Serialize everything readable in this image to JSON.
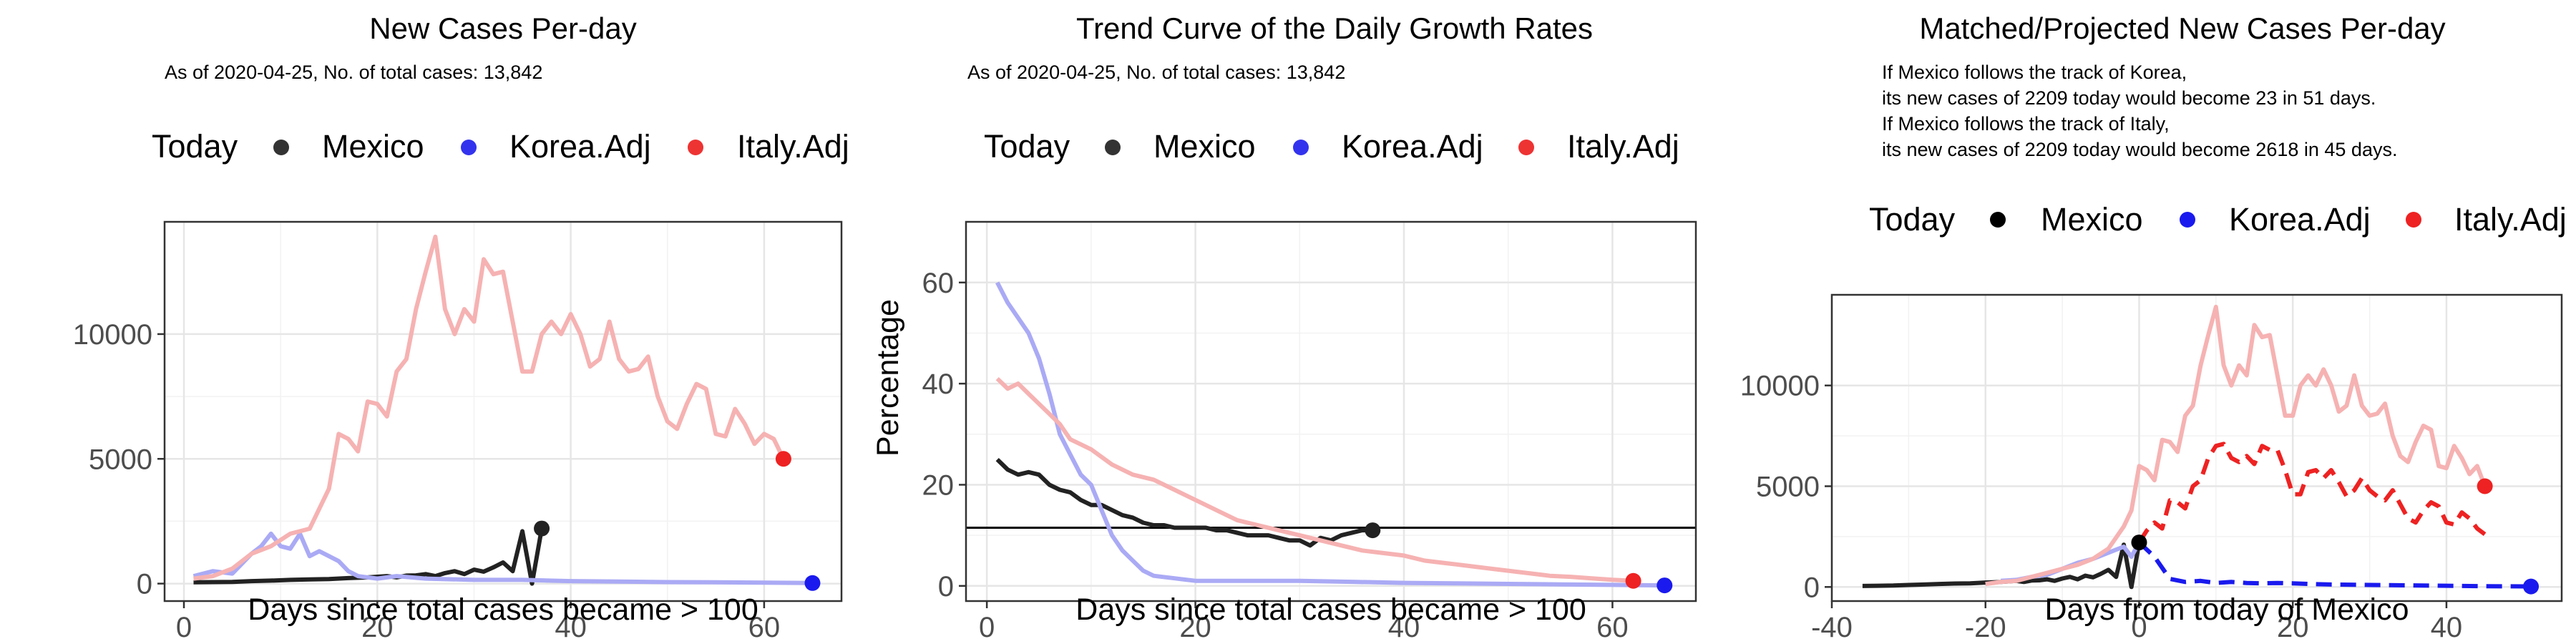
{
  "chart_data": [
    {
      "type": "line",
      "title": "New Cases Per-day",
      "subtitle": "As of 2020-04-25, No. of total cases: 13,842",
      "xlabel": "Days since total cases became > 100",
      "ylabel": "",
      "xlim": [
        -2,
        68
      ],
      "ylim": [
        -700,
        14500
      ],
      "xticks": [
        0,
        20,
        40,
        60
      ],
      "yticks": [
        0,
        5000,
        10000
      ],
      "legend": {
        "title": "Today",
        "placement": "top",
        "entries": [
          "Mexico",
          "Korea.Adj",
          "Italy.Adj"
        ]
      },
      "grid": true,
      "series": [
        {
          "name": "Mexico",
          "color": "#222222",
          "x": [
            1,
            3,
            5,
            7,
            9,
            11,
            13,
            15,
            17,
            19,
            21,
            22,
            23,
            24,
            25,
            26,
            27,
            28,
            29,
            30,
            31,
            32,
            33,
            34,
            35,
            36,
            37
          ],
          "y": [
            50,
            60,
            70,
            100,
            120,
            150,
            170,
            180,
            220,
            250,
            300,
            250,
            320,
            330,
            380,
            300,
            420,
            500,
            380,
            560,
            480,
            650,
            850,
            500,
            2100,
            0,
            2209
          ]
        },
        {
          "name": "Korea.Adj",
          "color": "#aaaaf5",
          "x": [
            1,
            3,
            5,
            7,
            8,
            9,
            10,
            11,
            12,
            13,
            14,
            15,
            16,
            17,
            18,
            20,
            22,
            25,
            30,
            35,
            40,
            45,
            50,
            55,
            60,
            65
          ],
          "y": [
            300,
            500,
            400,
            1200,
            1500,
            2000,
            1500,
            1400,
            2000,
            1100,
            1300,
            1100,
            900,
            500,
            300,
            200,
            300,
            200,
            150,
            150,
            100,
            80,
            60,
            50,
            40,
            23
          ]
        },
        {
          "name": "Italy.Adj",
          "color": "#f6b2b2",
          "x": [
            1,
            3,
            5,
            7,
            9,
            11,
            13,
            15,
            16,
            17,
            18,
            19,
            20,
            21,
            22,
            23,
            24,
            25,
            26,
            27,
            28,
            29,
            30,
            31,
            32,
            33,
            34,
            35,
            36,
            37,
            38,
            39,
            40,
            41,
            42,
            43,
            44,
            45,
            46,
            47,
            48,
            49,
            50,
            51,
            52,
            53,
            54,
            55,
            56,
            57,
            58,
            59,
            60,
            61,
            62
          ],
          "y": [
            200,
            300,
            600,
            1200,
            1500,
            2000,
            2200,
            3800,
            6000,
            5800,
            5300,
            7300,
            7200,
            6700,
            8500,
            9000,
            11000,
            12500,
            13900,
            11000,
            10000,
            11000,
            10500,
            13000,
            12400,
            12500,
            10500,
            8500,
            8500,
            10000,
            10500,
            10000,
            10800,
            10000,
            8700,
            9000,
            10500,
            9000,
            8500,
            8600,
            9100,
            7500,
            6500,
            6200,
            7200,
            8000,
            7800,
            6000,
            5900,
            7000,
            6400,
            5600,
            6000,
            5800,
            5000
          ]
        }
      ],
      "today_markers": [
        {
          "series": "Mexico",
          "x": 37,
          "y": 2209,
          "color": "#222222"
        },
        {
          "series": "Korea.Adj",
          "x": 65,
          "y": 23,
          "color": "#1a1aee"
        },
        {
          "series": "Italy.Adj",
          "x": 62,
          "y": 5000,
          "color": "#ee2222"
        }
      ]
    },
    {
      "type": "line",
      "title": "Trend Curve of the Daily Growth Rates",
      "subtitle": "As of 2020-04-25, No. of total cases: 13,842",
      "xlabel": "Days since total cases became > 100",
      "ylabel": "Percentage",
      "xlim": [
        -2,
        68
      ],
      "ylim": [
        -3,
        72
      ],
      "xticks": [
        0,
        20,
        40,
        60
      ],
      "yticks": [
        0,
        20,
        40,
        60
      ],
      "hline": 11.5,
      "legend": {
        "title": "Today",
        "placement": "top",
        "entries": [
          "Mexico",
          "Korea.Adj",
          "Italy.Adj"
        ]
      },
      "grid": true,
      "series": [
        {
          "name": "Mexico",
          "color": "#222222",
          "x": [
            1,
            2,
            3,
            4,
            5,
            6,
            7,
            8,
            9,
            10,
            11,
            12,
            13,
            14,
            15,
            16,
            17,
            18,
            19,
            20,
            21,
            22,
            23,
            24,
            25,
            26,
            27,
            28,
            29,
            30,
            31,
            32,
            33,
            34,
            35,
            36,
            37
          ],
          "y": [
            25,
            23,
            22,
            22.5,
            22,
            20,
            19,
            18.5,
            17,
            16,
            16,
            15,
            14,
            13.5,
            12.5,
            12,
            12,
            11.5,
            11.5,
            11.5,
            11.5,
            11,
            11,
            10.5,
            10,
            10,
            10,
            9.5,
            9,
            9,
            8,
            9.5,
            9,
            10,
            10.5,
            11,
            11
          ]
        },
        {
          "name": "Korea.Adj",
          "color": "#aaaaf5",
          "x": [
            1,
            2,
            3,
            4,
            5,
            6,
            7,
            8,
            9,
            10,
            11,
            12,
            13,
            14,
            15,
            16,
            18,
            20,
            25,
            30,
            35,
            40,
            45,
            50,
            55,
            60,
            65
          ],
          "y": [
            60,
            56,
            53,
            50,
            45,
            38,
            30,
            26,
            22,
            20,
            15,
            10,
            7,
            5,
            3,
            2,
            1.5,
            1,
            1,
            1,
            0.8,
            0.6,
            0.5,
            0.4,
            0.3,
            0.2,
            0.1
          ]
        },
        {
          "name": "Italy.Adj",
          "color": "#f6b2b2",
          "x": [
            1,
            2,
            3,
            4,
            5,
            6,
            7,
            8,
            9,
            10,
            12,
            14,
            16,
            18,
            20,
            22,
            24,
            26,
            28,
            30,
            32,
            34,
            36,
            38,
            40,
            42,
            44,
            46,
            48,
            50,
            52,
            54,
            56,
            58,
            60,
            62
          ],
          "y": [
            41,
            39,
            40,
            38,
            36,
            34,
            32,
            29,
            28,
            27,
            24,
            22,
            21,
            19,
            17,
            15,
            13,
            12,
            11,
            10,
            9,
            8,
            7,
            6.5,
            6,
            5,
            4.5,
            4,
            3.5,
            3,
            2.5,
            2,
            1.8,
            1.5,
            1.2,
            1
          ]
        }
      ],
      "today_markers": [
        {
          "series": "Mexico",
          "x": 37,
          "y": 11,
          "color": "#222222"
        },
        {
          "series": "Korea.Adj",
          "x": 65,
          "y": 0.1,
          "color": "#1a1aee"
        },
        {
          "series": "Italy.Adj",
          "x": 62,
          "y": 1,
          "color": "#ee2222"
        }
      ]
    },
    {
      "type": "line",
      "title": "Matched/Projected New Cases Per-day",
      "annotation_lines": [
        "If Mexico follows the track of Korea,",
        "its new cases of 2209 today would become 23 in 51 days.",
        "If Mexico follows the track of Italy,",
        "its new cases of 2209 today would become 2618 in 45 days."
      ],
      "xlabel": "Days from today of Mexico",
      "ylabel": "",
      "xlim": [
        -40,
        55
      ],
      "ylim": [
        -700,
        14500
      ],
      "xticks": [
        -40,
        -20,
        0,
        20,
        40
      ],
      "yticks": [
        0,
        5000,
        10000
      ],
      "legend": {
        "title": "Today",
        "placement": "top",
        "entries": [
          "Mexico",
          "Korea.Adj",
          "Italy.Adj"
        ]
      },
      "grid": true,
      "series": [
        {
          "name": "Mexico",
          "color": "#222222",
          "x": [
            -36,
            -34,
            -32,
            -30,
            -28,
            -26,
            -24,
            -22,
            -20,
            -18,
            -16,
            -15,
            -14,
            -13,
            -12,
            -11,
            -10,
            -9,
            -8,
            -7,
            -6,
            -5,
            -4,
            -3,
            -2,
            -1,
            0
          ],
          "y": [
            50,
            60,
            70,
            100,
            120,
            150,
            170,
            180,
            220,
            250,
            300,
            250,
            320,
            330,
            380,
            300,
            420,
            500,
            380,
            560,
            480,
            650,
            850,
            500,
            2100,
            0,
            2209
          ]
        },
        {
          "name": "Korea.Adj",
          "color": "#aaaaf5",
          "x": [
            -18,
            -16,
            -14,
            -12,
            -10,
            -8,
            -6,
            -4,
            -2,
            -1,
            0
          ],
          "y": [
            300,
            350,
            500,
            600,
            900,
            1200,
            1400,
            1700,
            2000,
            1500,
            2209
          ]
        },
        {
          "name": "Italy.Adj",
          "color": "#f6b2b2",
          "x": [
            -20,
            -18,
            -16,
            -14,
            -12,
            -10,
            -8,
            -6,
            -4,
            -2,
            -1,
            0,
            1,
            2,
            3,
            4,
            5,
            6,
            7,
            8,
            9,
            10,
            11,
            12,
            13,
            14,
            15,
            16,
            17,
            18,
            19,
            20,
            21,
            22,
            23,
            24,
            25,
            26,
            27,
            28,
            29,
            30,
            31,
            32,
            33,
            34,
            35,
            36,
            37,
            38,
            39,
            40,
            41,
            42,
            43,
            44,
            45
          ],
          "y": [
            150,
            250,
            300,
            500,
            700,
            900,
            1100,
            1400,
            1900,
            3000,
            3800,
            6000,
            5800,
            5300,
            7300,
            7200,
            6700,
            8500,
            9000,
            11000,
            12500,
            13900,
            11000,
            10000,
            11000,
            10500,
            13000,
            12400,
            12500,
            10500,
            8500,
            8500,
            10000,
            10500,
            10000,
            10800,
            10000,
            8700,
            9000,
            10500,
            9000,
            8500,
            8600,
            9100,
            7500,
            6500,
            6200,
            7200,
            8000,
            7800,
            6000,
            5900,
            7000,
            6400,
            5600,
            6000,
            5000
          ]
        },
        {
          "name": "Korea.Adj projected",
          "color": "#1a1aee",
          "dashed": true,
          "x": [
            0,
            2,
            4,
            6,
            8,
            10,
            12,
            14,
            16,
            18,
            20,
            22,
            25,
            30,
            35,
            40,
            45,
            51
          ],
          "y": [
            2209,
            1500,
            400,
            250,
            300,
            200,
            250,
            200,
            180,
            200,
            180,
            150,
            120,
            100,
            80,
            60,
            40,
            23
          ]
        },
        {
          "name": "Italy.Adj projected",
          "color": "#ee2222",
          "dashed": true,
          "x": [
            0,
            1,
            2,
            3,
            4,
            5,
            6,
            7,
            8,
            9,
            10,
            11,
            12,
            13,
            14,
            15,
            16,
            17,
            18,
            19,
            20,
            21,
            22,
            23,
            24,
            25,
            26,
            27,
            28,
            29,
            30,
            31,
            32,
            33,
            34,
            35,
            36,
            37,
            38,
            39,
            40,
            41,
            42,
            43,
            44,
            45
          ],
          "y": [
            2209,
            2800,
            3200,
            2900,
            4300,
            4200,
            3900,
            5000,
            5300,
            6400,
            7000,
            7100,
            6400,
            6200,
            6500,
            6100,
            7000,
            6800,
            6800,
            5800,
            4600,
            4600,
            5700,
            5800,
            5400,
            5800,
            5200,
            4500,
            4800,
            5400,
            4800,
            4500,
            4300,
            4800,
            4100,
            3400,
            3200,
            3800,
            4200,
            4000,
            3200,
            3100,
            3700,
            3400,
            2900,
            2618
          ]
        }
      ],
      "today_markers": [
        {
          "series": "Mexico",
          "x": 0,
          "y": 2209,
          "color": "#000000"
        },
        {
          "series": "Korea.Adj",
          "x": 51,
          "y": 23,
          "color": "#1a1aee"
        },
        {
          "series": "Italy.Adj",
          "x": 45,
          "y": 5000,
          "color": "#ee2222"
        }
      ]
    }
  ]
}
